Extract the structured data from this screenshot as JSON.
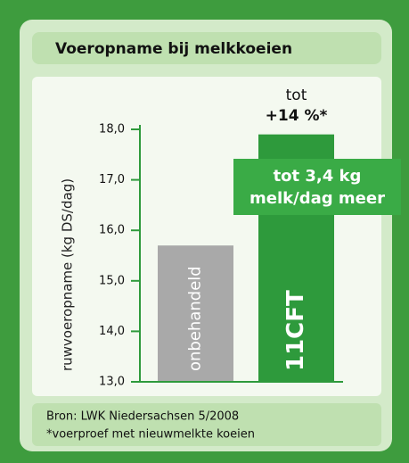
{
  "chart_data": {
    "type": "bar",
    "title": "Voeropname bij melkkoeien",
    "y_label": "ruwvoeropname (kg DS/dag)",
    "categories": [
      "onbehandeld",
      "11CFT"
    ],
    "values": [
      15.7,
      17.9
    ],
    "colors": [
      "#a9a9a9",
      "#2e9a3c"
    ],
    "ylim": [
      13,
      18
    ],
    "yticks": [
      {
        "value": 13,
        "label": "13,0"
      },
      {
        "value": 14,
        "label": "14,0"
      },
      {
        "value": 15,
        "label": "15,0"
      },
      {
        "value": 16,
        "label": "16,0"
      },
      {
        "value": 17,
        "label": "17,0"
      },
      {
        "value": 18,
        "label": "18,0"
      }
    ],
    "annotations": [
      "tot",
      "+14 %*"
    ],
    "callout": [
      "tot 3,4 kg",
      "melk/dag meer"
    ],
    "footer": [
      "Bron: LWK Niedersachsen 5/2008",
      "*voerproef met nieuwmelkte koeien"
    ]
  }
}
